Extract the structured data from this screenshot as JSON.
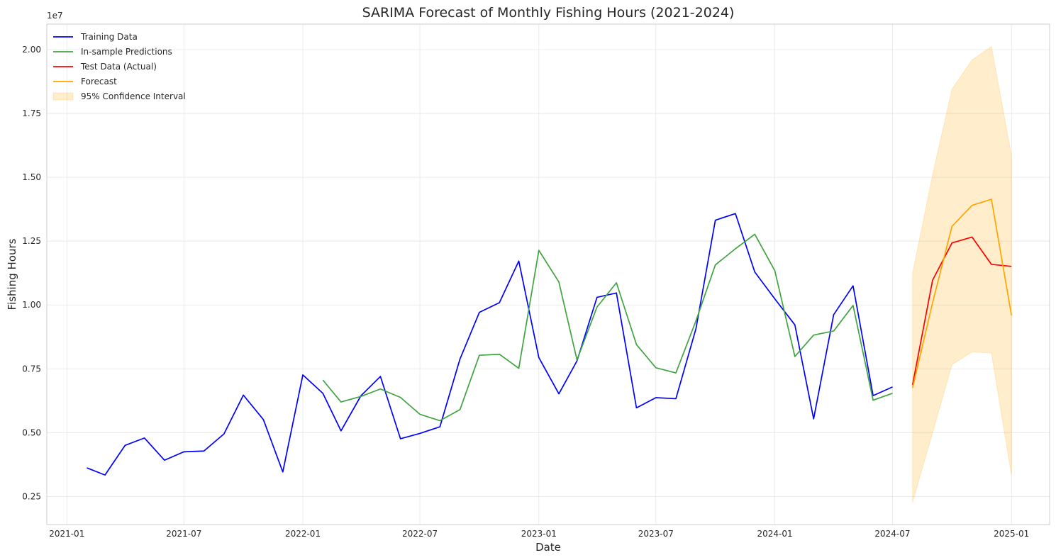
{
  "chart_data": {
    "type": "line",
    "title": "SARIMA Forecast of Monthly Fishing Hours (2021-2024)",
    "xlabel": "Date",
    "ylabel": "Fishing Hours",
    "y_multiplier_label": "1e7",
    "y_scale": 10000000,
    "xlim": [
      "2020-12-01",
      "2025-03-01"
    ],
    "ylim": [
      1400000,
      21000000
    ],
    "x_ticks": [
      "2021-01",
      "2021-07",
      "2022-01",
      "2022-07",
      "2023-01",
      "2023-07",
      "2024-01",
      "2024-07",
      "2025-01"
    ],
    "y_ticks": [
      0.25,
      0.5,
      0.75,
      1.0,
      1.25,
      1.5,
      1.75,
      2.0
    ],
    "y_tick_labels": [
      "0.25",
      "0.50",
      "0.75",
      "1.00",
      "1.25",
      "1.50",
      "1.75",
      "2.00"
    ],
    "grid": true,
    "legend_position": "top-left",
    "series": [
      {
        "name": "Training Data",
        "color": "#0000ff",
        "kind": "line",
        "x": [
          "2021-02-01",
          "2021-03-01",
          "2021-04-01",
          "2021-05-01",
          "2021-06-01",
          "2021-07-01",
          "2021-08-01",
          "2021-09-01",
          "2021-10-01",
          "2021-11-01",
          "2021-12-01",
          "2022-01-01",
          "2022-02-01",
          "2022-03-01",
          "2022-04-01",
          "2022-05-01",
          "2022-06-01",
          "2022-07-01",
          "2022-08-01",
          "2022-09-01",
          "2022-10-01",
          "2022-11-01",
          "2022-12-01",
          "2023-01-01",
          "2023-02-01",
          "2023-03-01",
          "2023-04-01",
          "2023-05-01",
          "2023-06-01",
          "2023-07-01",
          "2023-08-01",
          "2023-09-01",
          "2023-10-01",
          "2023-11-01",
          "2023-12-01",
          "2024-01-01",
          "2024-02-01",
          "2024-03-01",
          "2024-04-01",
          "2024-05-01",
          "2024-06-01",
          "2024-07-01"
        ],
        "y": [
          3620000,
          3340000,
          4500000,
          4790000,
          3920000,
          4250000,
          4280000,
          4950000,
          6470000,
          5510000,
          3460000,
          7260000,
          6540000,
          5070000,
          6450000,
          7200000,
          4760000,
          4970000,
          5230000,
          7880000,
          9710000,
          10090000,
          11720000,
          7940000,
          6520000,
          7810000,
          10300000,
          10470000,
          5970000,
          6370000,
          6330000,
          9070000,
          13320000,
          13580000,
          11290000,
          10240000,
          9220000,
          5540000,
          9620000,
          10750000,
          6450000,
          6790000
        ]
      },
      {
        "name": "In-sample Predictions",
        "color": "#3fa43f",
        "kind": "line",
        "x": [
          "2022-02-01",
          "2022-03-01",
          "2022-04-01",
          "2022-05-01",
          "2022-06-01",
          "2022-07-01",
          "2022-08-01",
          "2022-09-01",
          "2022-10-01",
          "2022-11-01",
          "2022-12-01",
          "2023-01-01",
          "2023-02-01",
          "2023-03-01",
          "2023-04-01",
          "2023-05-01",
          "2023-06-01",
          "2023-07-01",
          "2023-08-01",
          "2023-09-01",
          "2023-10-01",
          "2023-11-01",
          "2023-12-01",
          "2024-01-01",
          "2024-02-01",
          "2024-03-01",
          "2024-04-01",
          "2024-05-01",
          "2024-06-01",
          "2024-07-01"
        ],
        "y": [
          7060000,
          6200000,
          6420000,
          6710000,
          6380000,
          5720000,
          5470000,
          5900000,
          8030000,
          8070000,
          7520000,
          12140000,
          10900000,
          7850000,
          9920000,
          10870000,
          8450000,
          7540000,
          7340000,
          9380000,
          11570000,
          12200000,
          12770000,
          11340000,
          7980000,
          8820000,
          8980000,
          9980000,
          6270000,
          6540000
        ]
      },
      {
        "name": "Test Data (Actual)",
        "color": "#ff0000",
        "kind": "line",
        "x": [
          "2024-08-01",
          "2024-09-01",
          "2024-10-01",
          "2024-11-01",
          "2024-12-01",
          "2025-01-01"
        ],
        "y": [
          6870000,
          10970000,
          12430000,
          12660000,
          11590000,
          11510000
        ]
      },
      {
        "name": "Forecast",
        "color": "#ffa500",
        "kind": "line",
        "x": [
          "2024-08-01",
          "2024-09-01",
          "2024-10-01",
          "2024-11-01",
          "2024-12-01",
          "2025-01-01"
        ],
        "y": [
          6750000,
          10090000,
          13080000,
          13900000,
          14140000,
          9590000
        ]
      },
      {
        "name": "95% Confidence Interval",
        "color": "#ffa500",
        "kind": "band",
        "x": [
          "2024-08-01",
          "2024-09-01",
          "2024-10-01",
          "2024-11-01",
          "2024-12-01",
          "2025-01-01"
        ],
        "lower": [
          2270000,
          5000000,
          7660000,
          8160000,
          8120000,
          3330000
        ],
        "upper": [
          11230000,
          15100000,
          18450000,
          19600000,
          20120000,
          15860000
        ]
      }
    ]
  }
}
